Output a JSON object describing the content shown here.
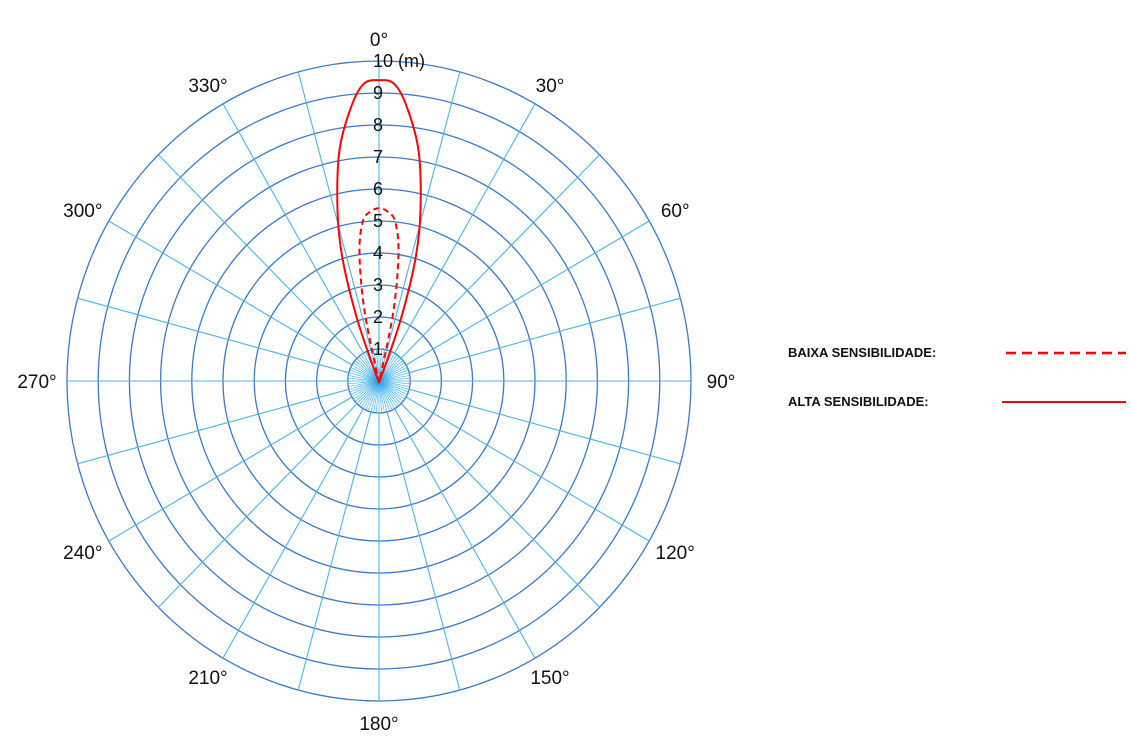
{
  "chart_data": {
    "type": "polar",
    "title": "",
    "angular_axis": {
      "unit": "°",
      "direction": "clockwise",
      "zero_at": "top",
      "tick_labels": [
        "0°",
        "30°",
        "60°",
        "90°",
        "120°",
        "150°",
        "180°",
        "210°",
        "240°",
        "270°",
        "300°",
        "330°"
      ],
      "spoke_step_deg": 15
    },
    "radial_axis": {
      "range": [
        0,
        10
      ],
      "tick_labels": [
        "1",
        "2",
        "3",
        "4",
        "5",
        "6",
        "7",
        "8",
        "9",
        "10 (m)"
      ],
      "ring_count": 10
    },
    "series": [
      {
        "name": "BAIXA SENSIBILIDADE:",
        "line_style": "dashed",
        "color": "#ff0000",
        "points": [
          {
            "angle": -12,
            "r": 2.2
          },
          {
            "angle": -9,
            "r": 4.0
          },
          {
            "angle": -6,
            "r": 5.0
          },
          {
            "angle": -3,
            "r": 5.3
          },
          {
            "angle": 0,
            "r": 5.4
          },
          {
            "angle": 3,
            "r": 5.3
          },
          {
            "angle": 6,
            "r": 5.0
          },
          {
            "angle": 9,
            "r": 4.0
          },
          {
            "angle": 12,
            "r": 2.2
          }
        ]
      },
      {
        "name": "ALTA SENSIBILIDADE:",
        "line_style": "solid",
        "color": "#ff0000",
        "points": [
          {
            "angle": -20,
            "r": 2.0
          },
          {
            "angle": -17,
            "r": 4.0
          },
          {
            "angle": -14,
            "r": 5.5
          },
          {
            "angle": -10,
            "r": 7.3
          },
          {
            "angle": -6,
            "r": 8.6
          },
          {
            "angle": -3,
            "r": 9.3
          },
          {
            "angle": 0,
            "r": 9.4
          },
          {
            "angle": 3,
            "r": 9.3
          },
          {
            "angle": 6,
            "r": 8.6
          },
          {
            "angle": 10,
            "r": 7.3
          },
          {
            "angle": 14,
            "r": 5.5
          },
          {
            "angle": 17,
            "r": 4.0
          },
          {
            "angle": 20,
            "r": 2.0
          }
        ]
      }
    ],
    "colors": {
      "ring": "#3a79c6",
      "spoke": "#49b4ea",
      "center": "#2ea9ee",
      "series": "#ff0000"
    },
    "legend": {
      "placement": "right",
      "entries": [
        {
          "label": "BAIXA SENSIBILIDADE:",
          "line_style": "dashed"
        },
        {
          "label": "ALTA SENSIBILIDADE:",
          "line_style": "solid"
        }
      ]
    }
  }
}
